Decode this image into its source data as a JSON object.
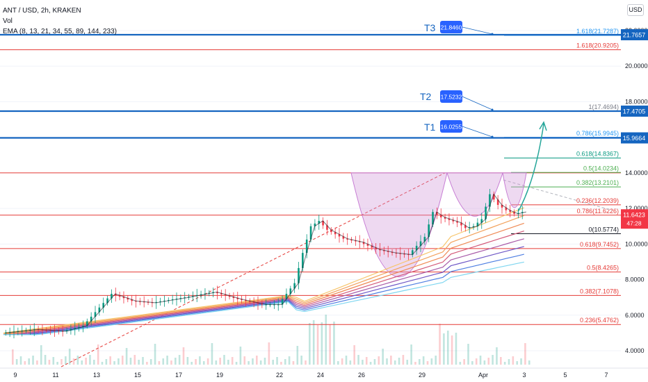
{
  "header": {
    "symbol_line": "ANT / USD, 2h, KRAKEN",
    "vol_label": "Vol",
    "ema_line": "EMA (8, 13, 21, 34, 55, 89, 144, 233)"
  },
  "currency_button": "USD",
  "chart_data": {
    "type": "line",
    "title": "ANT / USD, 2h, KRAKEN",
    "ylim": [
      3.0,
      23.5
    ],
    "price_ticks": [
      "4.0000",
      "6.0000",
      "8.0000",
      "10.0000",
      "12.0000",
      "14.0000",
      "16.0000",
      "18.0000",
      "20.0000",
      "22.0000"
    ],
    "date_ticks": [
      "9",
      "11",
      "13",
      "15",
      "17",
      "19",
      "22",
      "24",
      "26",
      "29",
      "Apr",
      "3",
      "5",
      "7"
    ],
    "price_series": [
      [
        0,
        5.0
      ],
      [
        8,
        5.2
      ],
      [
        15,
        5.1
      ],
      [
        20,
        5.4
      ],
      [
        27,
        7.2
      ],
      [
        32,
        6.8
      ],
      [
        37,
        6.7
      ],
      [
        45,
        7.0
      ],
      [
        52,
        7.3
      ],
      [
        58,
        6.9
      ],
      [
        64,
        6.6
      ],
      [
        68,
        6.6
      ],
      [
        72,
        7.8
      ],
      [
        74,
        9.5
      ],
      [
        76,
        11.0
      ],
      [
        78,
        11.3
      ],
      [
        80,
        10.8
      ],
      [
        84,
        10.3
      ],
      [
        88,
        10.1
      ],
      [
        92,
        9.7
      ],
      [
        96,
        9.5
      ],
      [
        100,
        9.4
      ],
      [
        104,
        10.4
      ],
      [
        106,
        11.8
      ],
      [
        108,
        11.5
      ],
      [
        112,
        11.2
      ],
      [
        114,
        10.9
      ],
      [
        116,
        11.0
      ],
      [
        118,
        11.4
      ],
      [
        120,
        12.8
      ],
      [
        122,
        12.2
      ],
      [
        124,
        11.9
      ],
      [
        126,
        11.7
      ],
      [
        128,
        11.8
      ]
    ],
    "current_price": "11.6423",
    "countdown": "47:28",
    "targets": [
      {
        "name": "T1",
        "value": "16.0255",
        "level": "15.9664"
      },
      {
        "name": "T2",
        "value": "17.5232",
        "level": "17.4705"
      },
      {
        "name": "T3",
        "value": "21.8460",
        "level": "21.7657"
      }
    ],
    "red_fib_levels": [
      {
        "label": "0.236(5.4762)",
        "value": 5.4762
      },
      {
        "label": "0.382(7.1078)",
        "value": 7.1078
      },
      {
        "label": "0.5(8.4265)",
        "value": 8.4265
      },
      {
        "label": "0.618(9.7452)",
        "value": 9.7452
      },
      {
        "label": "0.786(11.6226)",
        "value": 11.6226
      },
      {
        "label": "1.618(20.9205)",
        "value": 20.9205
      }
    ],
    "right_fib_levels": [
      {
        "label": "0(10.5774)",
        "value": 10.5774,
        "color": "#131722"
      },
      {
        "label": "0.236(12.2039)",
        "value": 12.2039,
        "color": "#e53935"
      },
      {
        "label": "0.382(13.2101)",
        "value": 13.2101,
        "color": "#4caf50"
      },
      {
        "label": "0.5(14.0234)",
        "value": 14.0234,
        "color": "#4caf50"
      },
      {
        "label": "0.618(14.8367)",
        "value": 14.8367,
        "color": "#089981"
      },
      {
        "label": "0.786(15.9945)",
        "value": 15.9945,
        "color": "#2196f3"
      },
      {
        "label": "1(17.4694)",
        "value": 17.4694,
        "color": "#787b86"
      },
      {
        "label": "1.618(21.7287)",
        "value": 21.7287,
        "color": "#2196f3"
      }
    ],
    "resistance_level": 14.0,
    "colors": {
      "blue_line": "#1565c0",
      "fib_red": "#e53935",
      "candle_up": "#089981",
      "candle_down": "#f23645",
      "cup": "#ce93d8",
      "arrow": "#26a69a",
      "price_label": "#f23645",
      "target_box": "#2962ff"
    }
  }
}
